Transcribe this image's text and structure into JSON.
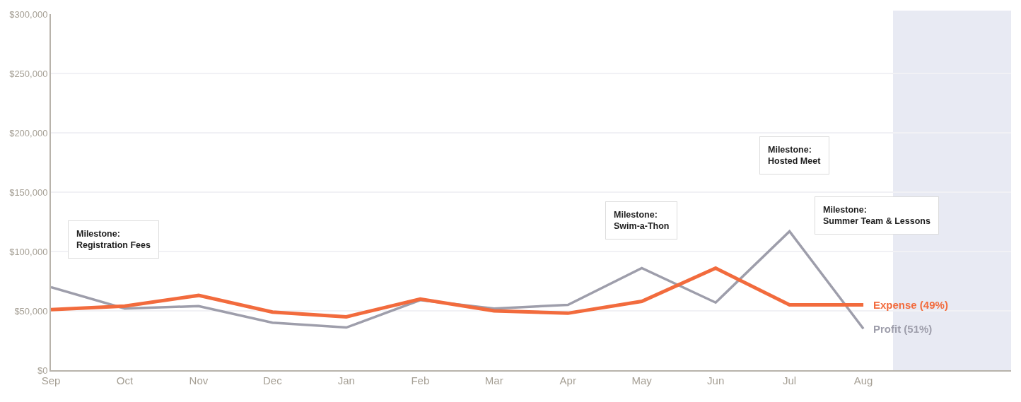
{
  "chart_data": {
    "type": "line",
    "categories": [
      "Sep",
      "Oct",
      "Nov",
      "Dec",
      "Jan",
      "Feb",
      "Mar",
      "Apr",
      "May",
      "Jun",
      "Jul",
      "Aug",
      null,
      null
    ],
    "series": [
      {
        "name": "Profit (51%)",
        "color": "#9e9eab",
        "values": [
          70000,
          52000,
          54000,
          40000,
          36000,
          59000,
          52000,
          55000,
          86000,
          57000,
          117000,
          35000,
          null,
          null
        ]
      },
      {
        "name": "Expense (49%)",
        "color": "#f26b3d",
        "values": [
          51000,
          54000,
          63000,
          49000,
          45000,
          60000,
          50000,
          48000,
          58000,
          86000,
          55000,
          55000,
          null,
          null
        ]
      }
    ],
    "ylim": [
      0,
      300000
    ],
    "yticks": [
      {
        "value": 0,
        "label": "$0"
      },
      {
        "value": 50000,
        "label": "$50,000"
      },
      {
        "value": 100000,
        "label": "$100,000"
      },
      {
        "value": 150000,
        "label": "$150,000"
      },
      {
        "value": 200000,
        "label": "$200,000"
      },
      {
        "value": 250000,
        "label": "$250,000"
      },
      {
        "value": 300000,
        "label": "$300,000"
      }
    ],
    "grid": "y",
    "legend": false,
    "annotations": [
      "Milestone:\nRegistration Fees",
      "Milestone:\nSwim-a-Thon",
      "Milestone:\nHosted Meet",
      "Milestone:\nSummer Team & Lessons"
    ]
  }
}
